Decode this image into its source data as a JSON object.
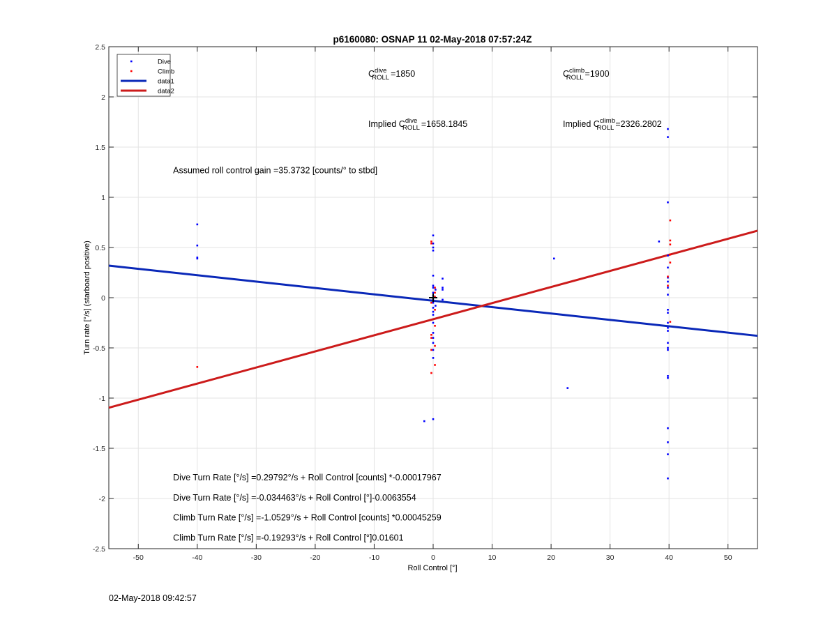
{
  "chart_data": {
    "type": "scatter",
    "title": "p6160080: OSNAP 11 02-May-2018 07:57:24Z",
    "xlabel": "Roll Control [°]",
    "ylabel": "Turn rate [°/s] (starboard positive)",
    "xlim": [
      -55,
      55
    ],
    "ylim": [
      -2.5,
      2.5
    ],
    "xticks": [
      -50,
      -40,
      -30,
      -20,
      -10,
      0,
      10,
      20,
      30,
      40,
      50
    ],
    "yticks": [
      -2.5,
      -2,
      -1.5,
      -1,
      -0.5,
      0,
      0.5,
      1,
      1.5,
      2,
      2.5
    ],
    "xtick_labels": [
      "-50",
      "-40",
      "-30",
      "-20",
      "-10",
      "0",
      "10",
      "20",
      "30",
      "40",
      "50"
    ],
    "ytick_labels": [
      "-2.5",
      "-2",
      "-1.5",
      "-1",
      "-0.5",
      "0",
      "0.5",
      "1",
      "1.5",
      "2",
      "2.5"
    ],
    "grid": true,
    "legend_position": "top-left",
    "series": [
      {
        "name": "Dive",
        "kind": "points",
        "color": "#0000ff",
        "points": [
          [
            -40,
            0.73
          ],
          [
            -40,
            0.52
          ],
          [
            -40,
            0.4
          ],
          [
            -40,
            0.39
          ],
          [
            -1.5,
            -1.23
          ],
          [
            0,
            -1.21
          ],
          [
            0,
            0.62
          ],
          [
            0,
            0.54
          ],
          [
            0,
            0.5
          ],
          [
            0,
            0.47
          ],
          [
            0,
            0.22
          ],
          [
            0,
            0.12
          ],
          [
            0,
            0.1
          ],
          [
            0,
            0.05
          ],
          [
            0,
            0.02
          ],
          [
            0,
            -0.02
          ],
          [
            0,
            -0.05
          ],
          [
            0,
            -0.1
          ],
          [
            0,
            -0.14
          ],
          [
            0,
            -0.17
          ],
          [
            0,
            -0.25
          ],
          [
            0,
            -0.35
          ],
          [
            0,
            -0.4
          ],
          [
            0,
            -0.45
          ],
          [
            0,
            -0.52
          ],
          [
            0,
            -0.6
          ],
          [
            0.4,
            0.08
          ],
          [
            0.4,
            -0.08
          ],
          [
            1.6,
            0.19
          ],
          [
            1.6,
            0.1
          ],
          [
            1.6,
            0.08
          ],
          [
            1.6,
            -0.02
          ],
          [
            20.5,
            0.39
          ],
          [
            22.8,
            -0.9
          ],
          [
            38.3,
            0.56
          ],
          [
            39.8,
            1.68
          ],
          [
            39.8,
            1.6
          ],
          [
            39.8,
            0.95
          ],
          [
            39.8,
            0.42
          ],
          [
            39.8,
            0.3
          ],
          [
            39.8,
            0.2
          ],
          [
            39.8,
            0.16
          ],
          [
            39.8,
            0.1
          ],
          [
            39.8,
            0.03
          ],
          [
            39.8,
            -0.12
          ],
          [
            39.8,
            -0.15
          ],
          [
            39.8,
            -0.25
          ],
          [
            39.8,
            -0.3
          ],
          [
            39.8,
            -0.33
          ],
          [
            39.8,
            -0.45
          ],
          [
            39.8,
            -0.5
          ],
          [
            39.8,
            -0.52
          ],
          [
            39.8,
            -0.78
          ],
          [
            39.8,
            -0.8
          ],
          [
            39.8,
            -1.3
          ],
          [
            39.8,
            -1.44
          ],
          [
            39.8,
            -1.56
          ],
          [
            39.8,
            -1.8
          ]
        ]
      },
      {
        "name": "Climb",
        "kind": "points",
        "color": "#ff0000",
        "points": [
          [
            -40,
            -0.69
          ],
          [
            -0.3,
            0.56
          ],
          [
            -0.3,
            0.54
          ],
          [
            0.3,
            0.1
          ],
          [
            0.3,
            0.05
          ],
          [
            0.3,
            0.01
          ],
          [
            -0.3,
            -0.05
          ],
          [
            0.3,
            -0.12
          ],
          [
            0.3,
            -0.28
          ],
          [
            -0.3,
            -0.37
          ],
          [
            -0.3,
            -0.4
          ],
          [
            0.3,
            -0.48
          ],
          [
            -0.3,
            -0.52
          ],
          [
            0.3,
            -0.67
          ],
          [
            -0.3,
            -0.75
          ],
          [
            40.2,
            0.77
          ],
          [
            40.2,
            0.57
          ],
          [
            40.2,
            0.53
          ],
          [
            40.2,
            0.43
          ],
          [
            40.2,
            0.35
          ],
          [
            39.8,
            0.21
          ],
          [
            39.8,
            0.12
          ],
          [
            40.2,
            -0.24
          ]
        ]
      },
      {
        "name": "data1",
        "kind": "line",
        "color": "#0000ff",
        "x": [
          -55,
          55
        ],
        "y": [
          0.3193,
          -0.3798
        ]
      },
      {
        "name": "data2",
        "kind": "line",
        "color": "#ff0000",
        "x": [
          -55,
          55
        ],
        "y": [
          -1.0961,
          0.6674
        ]
      }
    ],
    "marker": {
      "x": 0,
      "y": 0,
      "symbol": "+",
      "color": "#000000"
    },
    "annotations": [
      {
        "text_base": "C",
        "sub": "ROLL",
        "sup": "dive",
        "suffix": "=1850",
        "x": -11,
        "y": 2.2
      },
      {
        "text_base": "C",
        "sub": "ROLL",
        "sup": "climb",
        "suffix": "=1900",
        "x": 22,
        "y": 2.2
      },
      {
        "prefix": "Implied ",
        "text_base": "C",
        "sub": "ROLL",
        "sup": "dive",
        "suffix": "=1658.1845",
        "x": -11,
        "y": 1.7
      },
      {
        "prefix": "Implied ",
        "text_base": "C",
        "sub": "ROLL",
        "sup": "climb",
        "suffix": "=2326.2802",
        "x": 22,
        "y": 1.7
      },
      {
        "text": "Assumed roll control gain =35.3732 [counts/° to stbd]",
        "x": -44.1,
        "y": 1.24
      },
      {
        "text": "Dive Turn Rate [°/s] =0.29792°/s + Roll Control [counts] *-0.00017967",
        "x": -44.1,
        "y": -1.82
      },
      {
        "text": "Dive Turn Rate [°/s] =-0.034463°/s + Roll Control [°]-0.0063554",
        "x": -44.1,
        "y": -2.02
      },
      {
        "text": "Climb Turn Rate [°/s] =-1.0529°/s + Roll Control [counts] *0.00045259",
        "x": -44.1,
        "y": -2.22
      },
      {
        "text": "Climb Turn Rate [°/s] =-0.19293°/s + Roll Control [°]0.01601",
        "x": -44.1,
        "y": -2.42
      }
    ]
  },
  "footer": {
    "timestamp": "02-May-2018 09:42:57"
  }
}
